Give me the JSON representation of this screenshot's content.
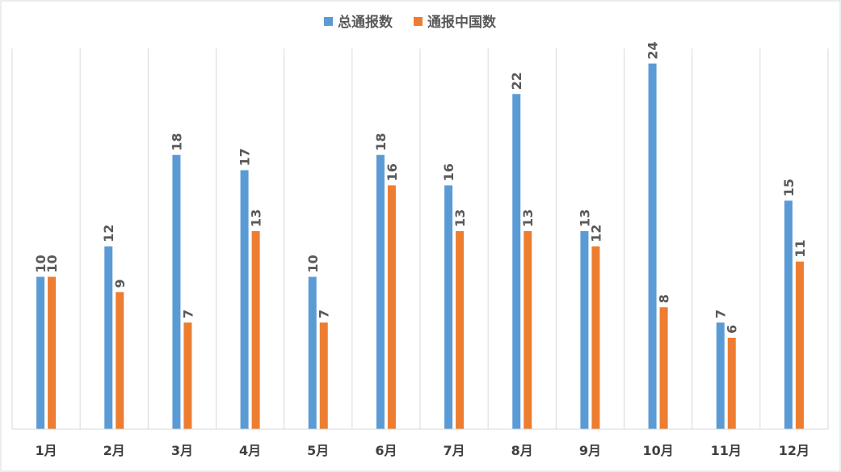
{
  "chart_data": {
    "type": "bar",
    "categories": [
      "1月",
      "2月",
      "3月",
      "4月",
      "5月",
      "6月",
      "7月",
      "8月",
      "9月",
      "10月",
      "11月",
      "12月"
    ],
    "series": [
      {
        "name": "总通报数",
        "color": "#5b9bd5",
        "values": [
          10,
          12,
          18,
          17,
          10,
          18,
          16,
          22,
          13,
          24,
          7,
          15
        ]
      },
      {
        "name": "通报中国数",
        "color": "#ed7d31",
        "values": [
          10,
          9,
          7,
          13,
          7,
          16,
          13,
          13,
          12,
          8,
          6,
          11
        ]
      }
    ],
    "title": "",
    "xlabel": "",
    "ylabel": "",
    "ylim": [
      0,
      24
    ],
    "legend_position": "top-center",
    "vertical_gridlines": true,
    "data_labels": true,
    "data_label_orientation": "vertical"
  }
}
